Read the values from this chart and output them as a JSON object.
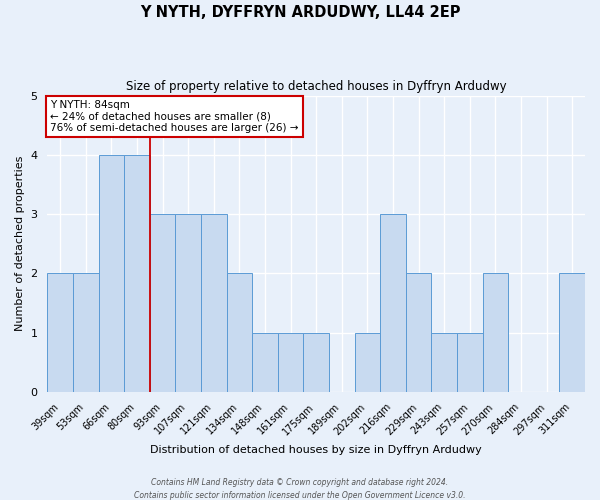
{
  "title": "Y NYTH, DYFFRYN ARDUDWY, LL44 2EP",
  "subtitle": "Size of property relative to detached houses in Dyffryn Ardudwy",
  "xlabel": "Distribution of detached houses by size in Dyffryn Ardudwy",
  "ylabel": "Number of detached properties",
  "bar_color": "#c8daf0",
  "bar_edge_color": "#5b9bd5",
  "background_color": "#e8f0fa",
  "grid_color": "#ffffff",
  "bins": [
    "39sqm",
    "53sqm",
    "66sqm",
    "80sqm",
    "93sqm",
    "107sqm",
    "121sqm",
    "134sqm",
    "148sqm",
    "161sqm",
    "175sqm",
    "189sqm",
    "202sqm",
    "216sqm",
    "229sqm",
    "243sqm",
    "257sqm",
    "270sqm",
    "284sqm",
    "297sqm",
    "311sqm"
  ],
  "values": [
    2,
    2,
    4,
    4,
    3,
    3,
    3,
    2,
    1,
    1,
    1,
    0,
    1,
    3,
    2,
    1,
    1,
    2,
    0,
    0,
    2
  ],
  "ylim": [
    0,
    5
  ],
  "yticks": [
    0,
    1,
    2,
    3,
    4,
    5
  ],
  "marker_line_color": "#cc0000",
  "annotation_text_line1": "Y NYTH: 84sqm",
  "annotation_text_line2": "← 24% of detached houses are smaller (8)",
  "annotation_text_line3": "76% of semi-detached houses are larger (26) →",
  "annotation_box_color": "#ffffff",
  "annotation_box_edge_color": "#cc0000",
  "footer_line1": "Contains HM Land Registry data © Crown copyright and database right 2024.",
  "footer_line2": "Contains public sector information licensed under the Open Government Licence v3.0."
}
